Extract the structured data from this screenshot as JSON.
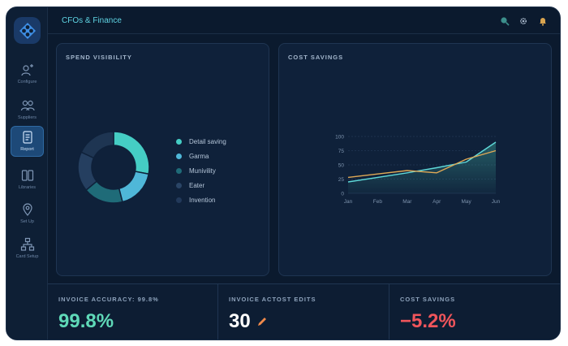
{
  "header": {
    "title": "CFOs & Finance"
  },
  "sidebar": {
    "items": [
      {
        "label": "Configure",
        "icon": "sparkle-person-icon"
      },
      {
        "label": "Suppliers",
        "icon": "users-icon"
      },
      {
        "label": "Report",
        "icon": "document-icon",
        "active": true
      },
      {
        "label": "Libraries",
        "icon": "columns-icon"
      },
      {
        "label": "Set Up",
        "icon": "location-pin-icon"
      },
      {
        "label": "Card Setup",
        "icon": "hierarchy-icon"
      }
    ]
  },
  "spend": {
    "title": "SPEND VISIBILITY",
    "chart_data": {
      "type": "pie",
      "categories": [
        "Detail saving",
        "Garma",
        "Munivility",
        "Eater",
        "Invention"
      ],
      "values": [
        28,
        18,
        18,
        18,
        18
      ],
      "colors": [
        "#45cdc4",
        "#4fb7d8",
        "#1f6b78",
        "#253f60",
        "#1e3552"
      ]
    }
  },
  "savings": {
    "title": "COST SAVINGS",
    "chart_data": {
      "type": "line",
      "categories": [
        "Jan",
        "Feb",
        "Mar",
        "Apr",
        "May",
        "Jun"
      ],
      "yticks": [
        "0",
        "25",
        "50",
        "75",
        "100"
      ],
      "ylim": [
        0,
        100
      ],
      "grid": true,
      "series": [
        {
          "values": [
            20,
            28,
            36,
            45,
            55,
            90
          ],
          "color": "#5fd9d9"
        },
        {
          "values": [
            28,
            34,
            40,
            36,
            60,
            75
          ],
          "color": "#e0a956"
        }
      ]
    }
  },
  "stats": [
    {
      "label": "INVOICE ACCURACY: 99.8%",
      "value": "99.8%",
      "color": "#5fd9b8"
    },
    {
      "label": "INVOICE ACTOST EDITS",
      "value": "30",
      "color": "#ffffff",
      "icon": "pencil-icon"
    },
    {
      "label": "COST SAVINGS",
      "value": "−5.2%",
      "color": "#f0555b"
    }
  ],
  "colors": {
    "accent": "#5fd4e3",
    "background": "#0b1a2e",
    "panel": "#0f213a"
  }
}
